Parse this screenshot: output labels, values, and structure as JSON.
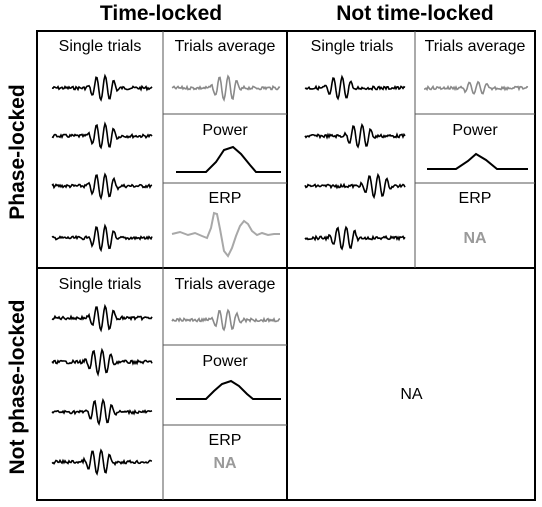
{
  "columns": {
    "time_locked": "Time-locked",
    "not_time_locked": "Not time-locked"
  },
  "rows": {
    "phase_locked": "Phase-locked",
    "not_phase_locked": "Not phase-locked"
  },
  "cells": {
    "phase_time": {
      "single_trials": "Single trials",
      "trials_average": "Trials average",
      "power": "Power",
      "erp": "ERP"
    },
    "phase_nottime": {
      "single_trials": "Single trials",
      "trials_average": "Trials average",
      "power": "Power",
      "erp": "ERP",
      "erp_value": "NA"
    },
    "notphase_time": {
      "single_trials": "Single trials",
      "trials_average": "Trials average",
      "power": "Power",
      "erp": "ERP",
      "erp_value": "NA"
    },
    "notphase_nottime": {
      "value": "NA"
    }
  },
  "colors": {
    "trace": "#000000",
    "average_trace": "#8a8a8a",
    "erp_trace": "#a8a8a8",
    "na_text": "#9a9a9a"
  }
}
